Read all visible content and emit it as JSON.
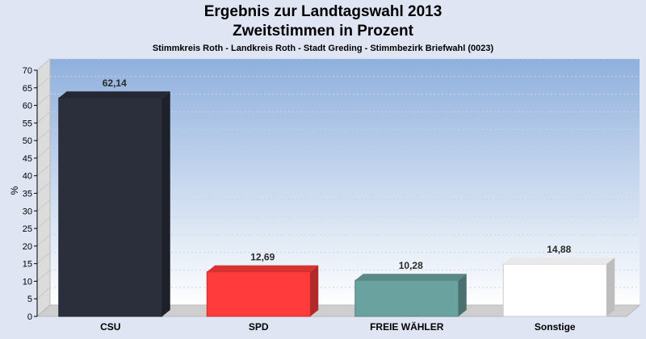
{
  "chart_data": {
    "type": "bar",
    "title": "Ergebnis zur Landtagswahl 2013",
    "subtitle": "Zweitstimmen in Prozent",
    "caption": "Stimmkreis Roth - Landkreis Roth - Stadt Greding - Stimmbezirk Briefwahl (0023)",
    "ylabel": "%",
    "ylim": [
      0,
      70
    ],
    "yticks": [
      0,
      5,
      10,
      15,
      20,
      25,
      30,
      35,
      40,
      45,
      50,
      55,
      60,
      65,
      70
    ],
    "categories": [
      "CSU",
      "SPD",
      "FREIE WÄHLER",
      "Sonstige"
    ],
    "values": [
      62.14,
      12.69,
      10.28,
      14.88
    ],
    "value_labels": [
      "62,14",
      "12,69",
      "10,28",
      "14,88"
    ],
    "colors": [
      "#2b2f3b",
      "#ff3b3b",
      "#6aa29f",
      "#ffffff"
    ],
    "grid": true
  }
}
